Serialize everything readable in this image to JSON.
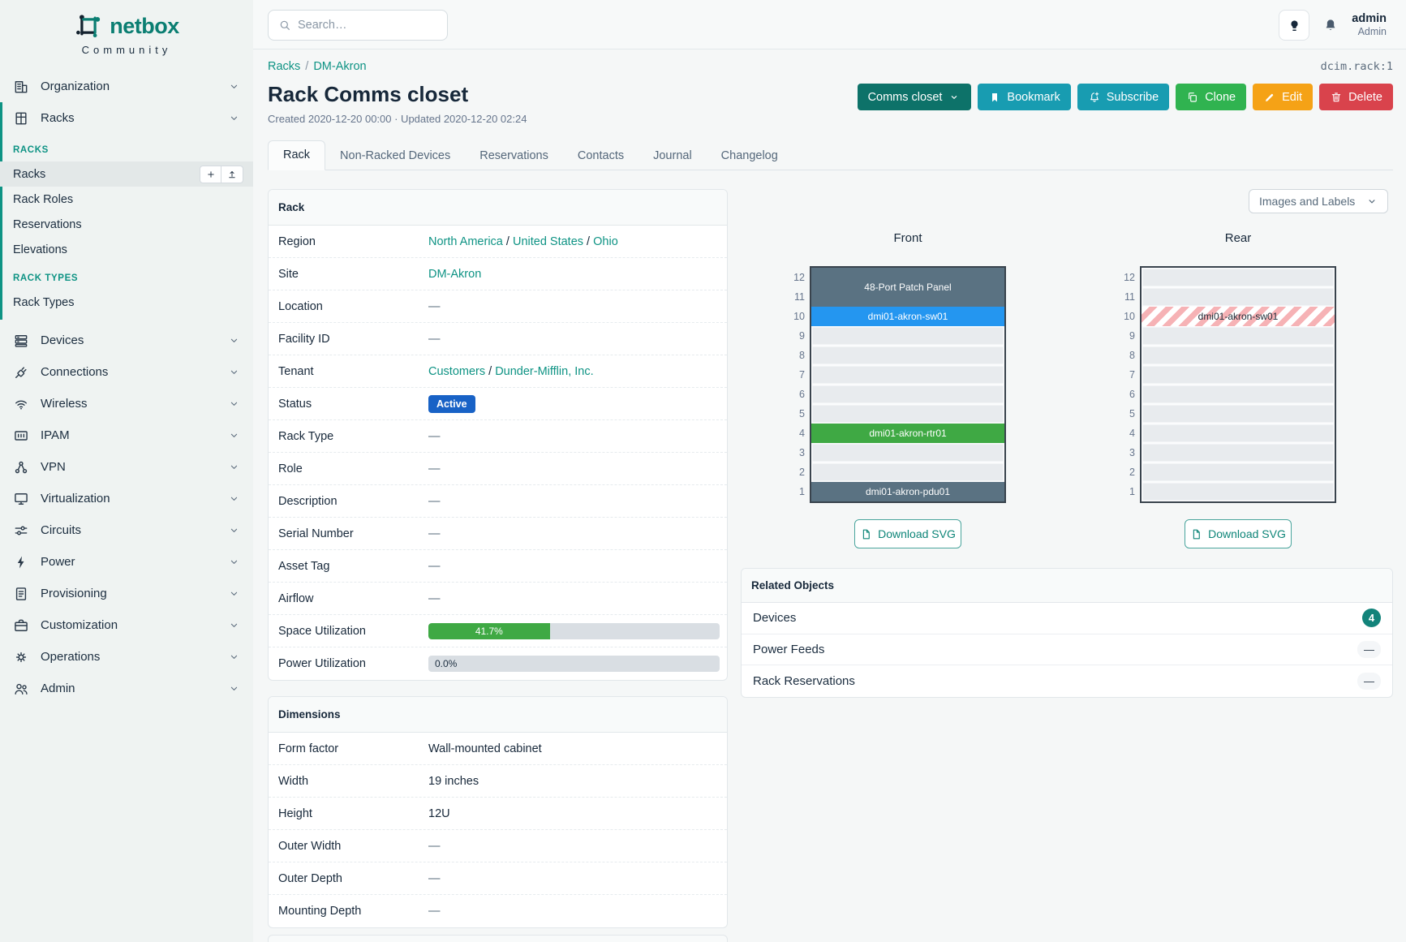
{
  "colors": {
    "teal": "#0e9384",
    "teal_dark": "#0d7269",
    "cyan": "#189cb1",
    "green": "#30b350",
    "amber": "#f5a216",
    "red": "#d9434c",
    "status_blue": "#1862c6",
    "utilization_green": "#3fa944",
    "device_slate": "#5a7282",
    "device_blue": "#2496f0",
    "device_green": "#3fa944"
  },
  "brand": {
    "name": "netbox",
    "tagline": "Community"
  },
  "topbar": {
    "search_placeholder": "Search…",
    "user_name": "admin",
    "user_role": "Admin"
  },
  "sidebar": {
    "items": [
      {
        "type": "top",
        "label": "Organization",
        "icon": "building-icon"
      },
      {
        "type": "top",
        "label": "Racks",
        "icon": "rack-icon",
        "group": true
      },
      {
        "type": "header",
        "label": "RACKS",
        "group": true
      },
      {
        "type": "link",
        "label": "Racks",
        "active": true,
        "buttons": [
          "add",
          "import"
        ],
        "group": true
      },
      {
        "type": "link",
        "label": "Rack Roles",
        "group": true
      },
      {
        "type": "link",
        "label": "Reservations",
        "group": true
      },
      {
        "type": "link",
        "label": "Elevations",
        "group": true
      },
      {
        "type": "header",
        "label": "RACK TYPES",
        "group": true
      },
      {
        "type": "link",
        "label": "Rack Types",
        "group": true
      },
      {
        "type": "top",
        "label": "Devices",
        "icon": "server-icon"
      },
      {
        "type": "top",
        "label": "Connections",
        "icon": "plug-icon"
      },
      {
        "type": "top",
        "label": "Wireless",
        "icon": "wifi-icon"
      },
      {
        "type": "top",
        "label": "IPAM",
        "icon": "ip-grid-icon"
      },
      {
        "type": "top",
        "label": "VPN",
        "icon": "network-icon"
      },
      {
        "type": "top",
        "label": "Virtualization",
        "icon": "monitor-icon"
      },
      {
        "type": "top",
        "label": "Circuits",
        "icon": "circuit-icon"
      },
      {
        "type": "top",
        "label": "Power",
        "icon": "bolt-icon"
      },
      {
        "type": "top",
        "label": "Provisioning",
        "icon": "document-icon"
      },
      {
        "type": "top",
        "label": "Customization",
        "icon": "briefcase-icon"
      },
      {
        "type": "top",
        "label": "Operations",
        "icon": "gear-icon"
      },
      {
        "type": "top",
        "label": "Admin",
        "icon": "users-icon"
      }
    ]
  },
  "header": {
    "breadcrumb": [
      "Racks",
      "DM-Akron"
    ],
    "object_id": "dcim.rack:1",
    "title": "Rack Comms closet",
    "meta": "Created 2020-12-20 00:00 · Updated 2020-12-20 02:24",
    "actions": [
      {
        "label": "Comms closet",
        "color": "#0d7269",
        "icon": "",
        "caret": true,
        "name": "device-selector-button"
      },
      {
        "label": "Bookmark",
        "color": "#189cb1",
        "icon": "bookmark-icon",
        "name": "bookmark-button"
      },
      {
        "label": "Subscribe",
        "color": "#189cb1",
        "icon": "bell-plus-icon",
        "name": "subscribe-button"
      },
      {
        "label": "Clone",
        "color": "#30b350",
        "icon": "copy-icon",
        "name": "clone-button"
      },
      {
        "label": "Edit",
        "color": "#f5a216",
        "icon": "pencil-icon",
        "name": "edit-button"
      },
      {
        "label": "Delete",
        "color": "#d9434c",
        "icon": "trash-icon",
        "name": "delete-button"
      }
    ],
    "tabs": [
      {
        "label": "Rack",
        "active": true
      },
      {
        "label": "Non-Racked Devices"
      },
      {
        "label": "Reservations"
      },
      {
        "label": "Contacts"
      },
      {
        "label": "Journal"
      },
      {
        "label": "Changelog"
      }
    ]
  },
  "rack_panel": {
    "title": "Rack",
    "rows": [
      {
        "label": "Region",
        "type": "links",
        "links": [
          "North America",
          "United States",
          "Ohio"
        ]
      },
      {
        "label": "Site",
        "type": "links",
        "links": [
          "DM-Akron"
        ]
      },
      {
        "label": "Location",
        "type": "dash"
      },
      {
        "label": "Facility ID",
        "type": "dash"
      },
      {
        "label": "Tenant",
        "type": "links",
        "links": [
          "Customers",
          "Dunder-Mifflin, Inc."
        ]
      },
      {
        "label": "Status",
        "type": "badge",
        "text": "Active",
        "color": "#1862c6"
      },
      {
        "label": "Rack Type",
        "type": "dash"
      },
      {
        "label": "Role",
        "type": "dash"
      },
      {
        "label": "Description",
        "type": "dash"
      },
      {
        "label": "Serial Number",
        "type": "dash"
      },
      {
        "label": "Asset Tag",
        "type": "dash"
      },
      {
        "label": "Airflow",
        "type": "dash"
      },
      {
        "label": "Space Utilization",
        "type": "progress",
        "percent": 41.7,
        "text": "41.7%",
        "color": "#3fa944"
      },
      {
        "label": "Power Utilization",
        "type": "progress",
        "percent": 0,
        "text": "0.0%",
        "color": "#3fa944"
      }
    ]
  },
  "dimensions_panel": {
    "title": "Dimensions",
    "rows": [
      {
        "label": "Form factor",
        "type": "text",
        "text": "Wall-mounted cabinet"
      },
      {
        "label": "Width",
        "type": "text",
        "text": "19 inches"
      },
      {
        "label": "Height",
        "type": "text",
        "text": "12U"
      },
      {
        "label": "Outer Width",
        "type": "dash"
      },
      {
        "label": "Outer Depth",
        "type": "dash"
      },
      {
        "label": "Mounting Depth",
        "type": "dash"
      }
    ]
  },
  "elevations": {
    "view_selector": "Images and Labels",
    "download_label": "Download SVG",
    "units_total": 12,
    "front": {
      "title": "Front",
      "devices": [
        {
          "name": "48-Port Patch Panel",
          "top_unit": 12,
          "u_height": 2,
          "color": "#5a7282",
          "text_color": "#ffffff"
        },
        {
          "name": "dmi01-akron-sw01",
          "top_unit": 10,
          "u_height": 1,
          "color": "#2496f0",
          "text_color": "#ffffff"
        },
        {
          "name": "dmi01-akron-rtr01",
          "top_unit": 4,
          "u_height": 1,
          "color": "#3fa944",
          "text_color": "#ffffff"
        },
        {
          "name": "dmi01-akron-pdu01",
          "top_unit": 1,
          "u_height": 1,
          "color": "#5a7282",
          "text_color": "#ffffff"
        }
      ]
    },
    "rear": {
      "title": "Rear",
      "devices": [
        {
          "name": "dmi01-akron-sw01",
          "top_unit": 10,
          "u_height": 1,
          "striped": true,
          "text_color": "#222c38"
        }
      ]
    }
  },
  "related_objects": {
    "title": "Related Objects",
    "rows": [
      {
        "label": "Devices",
        "badge": "4",
        "badge_style": "count"
      },
      {
        "label": "Power Feeds",
        "badge": "—",
        "badge_style": "empty"
      },
      {
        "label": "Rack Reservations",
        "badge": "—",
        "badge_style": "empty"
      }
    ]
  }
}
